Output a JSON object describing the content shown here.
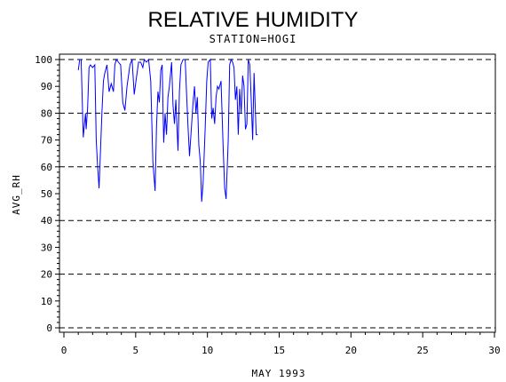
{
  "chart_data": {
    "type": "line",
    "title": "RELATIVE HUMIDITY",
    "subtitle": "STATION=HOGI",
    "xlabel": "MAY 1993",
    "ylabel": "AVG_RH",
    "xlim": [
      0,
      30
    ],
    "ylim": [
      0,
      100
    ],
    "x_ticks": [
      0,
      5,
      10,
      15,
      20,
      25,
      30
    ],
    "y_ticks": [
      0,
      10,
      20,
      30,
      40,
      50,
      60,
      70,
      80,
      90,
      100
    ],
    "y_gridlines": [
      0,
      20,
      40,
      60,
      80,
      100
    ],
    "grid": "horizontal dashed",
    "line_color": "#0000ff",
    "series": [
      {
        "x": [
          1.0,
          1.1,
          1.2,
          1.35,
          1.5,
          1.55,
          1.65,
          1.75,
          1.85,
          2.0,
          2.15,
          2.25,
          2.35,
          2.45,
          2.55,
          2.65,
          2.75,
          2.85,
          3.0,
          3.15,
          3.3,
          3.45,
          3.55,
          3.65,
          3.8,
          3.95,
          4.1,
          4.25,
          4.4,
          4.6,
          4.75,
          4.9,
          5.05,
          5.2,
          5.35,
          5.5,
          5.6,
          5.75,
          5.9,
          6.05,
          6.2,
          6.35,
          6.45,
          6.55,
          6.65,
          6.75,
          6.85,
          6.95,
          7.05,
          7.15,
          7.25,
          7.35,
          7.5,
          7.6,
          7.7,
          7.8,
          7.95,
          8.05,
          8.15,
          8.3,
          8.45,
          8.55,
          8.65,
          8.75,
          8.9,
          9.0,
          9.1,
          9.2,
          9.3,
          9.4,
          9.5,
          9.6,
          9.7,
          9.85,
          9.95,
          10.05,
          10.2,
          10.3,
          10.4,
          10.5,
          10.6,
          10.7,
          10.8,
          10.95,
          11.1,
          11.2,
          11.3,
          11.45,
          11.55,
          11.65,
          11.75,
          11.85,
          11.95,
          12.05,
          12.15,
          12.25,
          12.35,
          12.45,
          12.55,
          12.65,
          12.75,
          12.85,
          12.95,
          13.05,
          13.15,
          13.25,
          13.4,
          13.5
        ],
        "y": [
          96,
          100,
          100,
          71,
          80,
          74,
          82,
          97,
          98,
          97,
          98,
          70,
          60,
          52,
          66,
          80,
          92,
          95,
          98,
          88,
          91,
          88,
          98,
          100,
          99,
          98,
          84,
          81,
          90,
          98,
          100,
          87,
          93,
          99,
          99,
          97,
          100,
          99,
          100,
          92,
          62,
          51,
          75,
          88,
          84,
          96,
          98,
          69,
          80,
          72,
          86,
          90,
          99,
          83,
          76,
          85,
          66,
          88,
          98,
          100,
          100,
          87,
          75,
          64,
          76,
          84,
          90,
          80,
          86,
          68,
          62,
          47,
          54,
          75,
          92,
          99,
          100,
          78,
          82,
          76,
          86,
          90,
          89,
          92,
          67,
          52,
          48,
          70,
          98,
          100,
          99,
          97,
          85,
          90,
          72,
          89,
          80,
          94,
          90,
          74,
          76,
          100,
          98,
          85,
          70,
          95,
          72,
          72
        ]
      }
    ]
  }
}
